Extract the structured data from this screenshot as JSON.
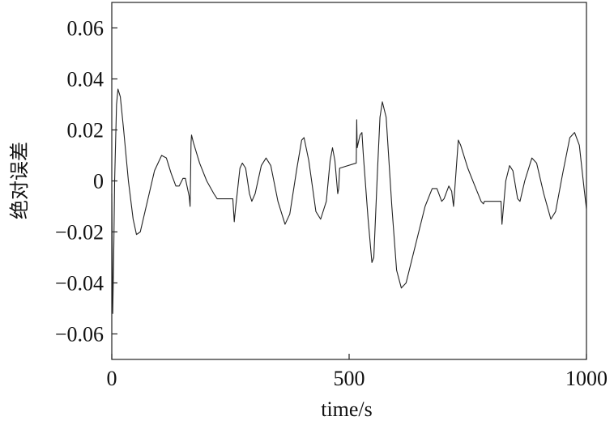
{
  "chart_data": {
    "type": "line",
    "xlabel": "time/s",
    "ylabel": "绝对误差",
    "xlim": [
      0,
      1000
    ],
    "xticks": [
      0,
      500,
      1000
    ],
    "ylim": [
      -0.07,
      0.07
    ],
    "yticks": [
      {
        "value": -0.06,
        "label": "−0.06"
      },
      {
        "value": -0.04,
        "label": "−0.04"
      },
      {
        "value": -0.02,
        "label": "−0.02"
      },
      0,
      0.02,
      0.04,
      0.06
    ],
    "grid": false,
    "series": [
      {
        "name": "绝对误差",
        "color": "#222222",
        "x": [
          0,
          2,
          4,
          6,
          10,
          13,
          18,
          25,
          35,
          45,
          52,
          60,
          75,
          90,
          105,
          115,
          125,
          135,
          142,
          150,
          155,
          163,
          165,
          167,
          168,
          172,
          185,
          200,
          215,
          222,
          255,
          258,
          260,
          270,
          275,
          282,
          290,
          295,
          302,
          315,
          325,
          335,
          350,
          365,
          375,
          390,
          400,
          405,
          415,
          430,
          440,
          452,
          460,
          465,
          470,
          476,
          478,
          480,
          515,
          516,
          517,
          523,
          527,
          530,
          540,
          548,
          552,
          560,
          565,
          570,
          578,
          590,
          600,
          610,
          620,
          640,
          660,
          675,
          685,
          695,
          700,
          710,
          716,
          720,
          730,
          735,
          750,
          765,
          778,
          783,
          785,
          820,
          822,
          830,
          838,
          845,
          855,
          860,
          870,
          885,
          895,
          910,
          925,
          935,
          950,
          965,
          975,
          985,
          995,
          1000
        ],
        "values": [
          -0.005,
          -0.052,
          -0.03,
          0.0,
          0.03,
          0.036,
          0.033,
          0.02,
          0.0,
          -0.015,
          -0.021,
          -0.02,
          -0.008,
          0.004,
          0.01,
          0.009,
          0.003,
          -0.002,
          -0.002,
          0.001,
          0.001,
          -0.006,
          -0.01,
          0.015,
          0.018,
          0.015,
          0.007,
          0.0,
          -0.005,
          -0.007,
          -0.007,
          -0.016,
          -0.012,
          0.005,
          0.007,
          0.005,
          -0.005,
          -0.008,
          -0.005,
          0.006,
          0.009,
          0.006,
          -0.008,
          -0.017,
          -0.013,
          0.005,
          0.016,
          0.017,
          0.008,
          -0.012,
          -0.015,
          -0.008,
          0.008,
          0.013,
          0.008,
          -0.005,
          -0.003,
          0.005,
          0.007,
          0.024,
          0.013,
          0.018,
          0.019,
          0.01,
          -0.015,
          -0.032,
          -0.03,
          0.005,
          0.025,
          0.031,
          0.025,
          -0.01,
          -0.035,
          -0.042,
          -0.04,
          -0.025,
          -0.01,
          -0.003,
          -0.003,
          -0.008,
          -0.007,
          -0.002,
          -0.004,
          -0.01,
          0.016,
          0.014,
          0.005,
          -0.002,
          -0.008,
          -0.009,
          -0.008,
          -0.008,
          -0.017,
          0.0,
          0.006,
          0.004,
          -0.007,
          -0.008,
          0.0,
          0.009,
          0.007,
          -0.005,
          -0.015,
          -0.012,
          0.003,
          0.017,
          0.019,
          0.014,
          -0.003,
          -0.011
        ]
      }
    ]
  }
}
